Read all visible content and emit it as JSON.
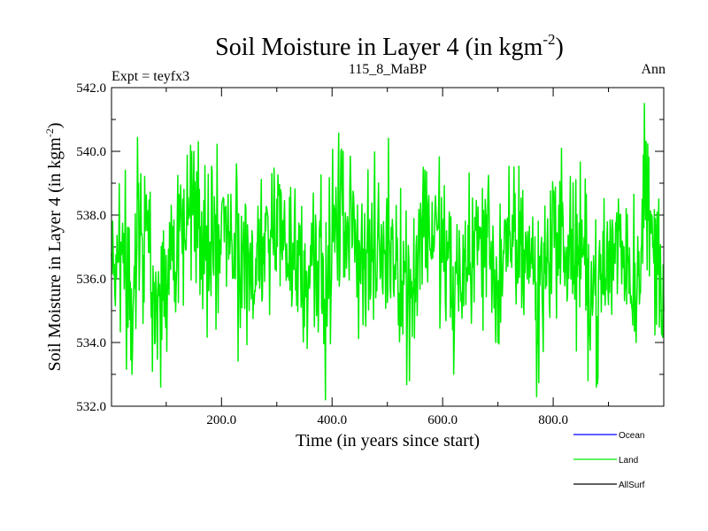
{
  "chart_data": {
    "type": "line",
    "title": {
      "main": "Soil Moisture in Layer 4 (in kgm",
      "sup": "-2",
      "end": ")"
    },
    "subtitle_left": "Expt = teyfx3",
    "subtitle_center": "115_8_MaBP",
    "subtitle_right": "Ann",
    "xlabel": "Time (in years since start)",
    "ylabel": {
      "main": "Soil Moisture in Layer 4 (in kgm",
      "sup": "-2",
      "end": ")"
    },
    "xlim": [
      1,
      1000
    ],
    "ylim": [
      532.0,
      542.0
    ],
    "xticks": [
      200,
      400,
      600,
      800
    ],
    "xtick_labels": [
      "200.0",
      "400.0",
      "600.0",
      "800.0"
    ],
    "yticks": [
      532,
      534,
      536,
      538,
      540,
      542
    ],
    "ytick_labels": [
      "532.0",
      "534.0",
      "536.0",
      "538.0",
      "540.0",
      "542.0"
    ],
    "legend": {
      "placement": "bottom-right",
      "entries": [
        {
          "name": "Ocean",
          "color": "#0000ff"
        },
        {
          "name": "Land",
          "color": "#00ee00"
        },
        {
          "name": "AllSurf",
          "color": "#000000"
        }
      ]
    },
    "series": [
      {
        "name": "Land",
        "color": "#00ee00",
        "n_points": 1000,
        "mean": 537.0,
        "std": 1.25,
        "min": 532.2,
        "max": 541.5,
        "keypoints_x": [
          1,
          20,
          38,
          50,
          62,
          80,
          90,
          110,
          130,
          150,
          175,
          200,
          225,
          250,
          280,
          300,
          330,
          350,
          370,
          388,
          400,
          420,
          450,
          480,
          510,
          540,
          565,
          600,
          620,
          650,
          680,
          700,
          730,
          760,
          770,
          800,
          820,
          850,
          880,
          920,
          950,
          965,
          980,
          1000
        ],
        "keypoints_y": [
          536.8,
          537.0,
          533.0,
          539.0,
          537.5,
          534.0,
          532.6,
          537.5,
          538.5,
          540.0,
          537.0,
          538.0,
          536.0,
          535.0,
          537.5,
          538.5,
          537.0,
          534.5,
          538.0,
          532.2,
          537.5,
          540.0,
          537.0,
          536.0,
          537.5,
          532.8,
          539.5,
          537.0,
          533.0,
          536.5,
          538.0,
          534.0,
          537.5,
          536.5,
          532.3,
          538.5,
          537.0,
          536.0,
          532.7,
          538.0,
          534.0,
          541.5,
          537.0,
          535.0
        ]
      }
    ]
  }
}
